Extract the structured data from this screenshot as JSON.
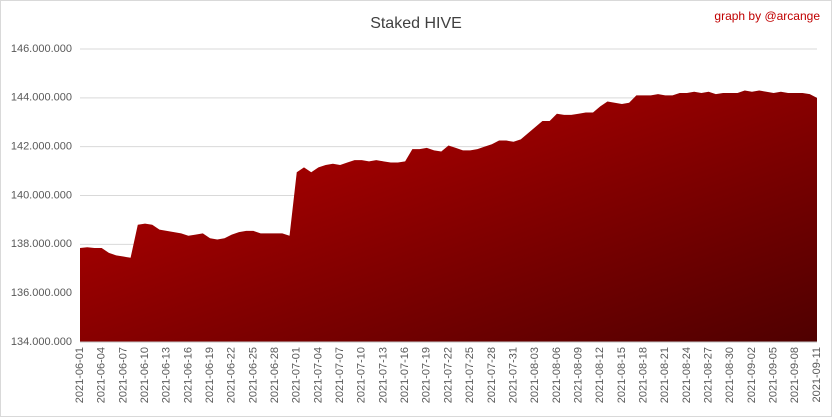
{
  "chart_data": {
    "type": "area",
    "title": "Staked HIVE",
    "annotation": "graph by @arcange",
    "categories": [
      "2021-06-01",
      null,
      null,
      "2021-06-04",
      null,
      null,
      "2021-06-07",
      null,
      null,
      "2021-06-10",
      null,
      null,
      "2021-06-13",
      null,
      null,
      "2021-06-16",
      null,
      null,
      "2021-06-19",
      null,
      null,
      "2021-06-22",
      null,
      null,
      "2021-06-25",
      null,
      null,
      "2021-06-28",
      null,
      null,
      "2021-07-01",
      null,
      null,
      "2021-07-04",
      null,
      null,
      "2021-07-07",
      null,
      null,
      "2021-07-10",
      null,
      null,
      "2021-07-13",
      null,
      null,
      "2021-07-16",
      null,
      null,
      "2021-07-19",
      null,
      null,
      "2021-07-22",
      null,
      null,
      "2021-07-25",
      null,
      null,
      "2021-07-28",
      null,
      null,
      "2021-07-31",
      null,
      null,
      "2021-08-03",
      null,
      null,
      "2021-08-06",
      null,
      null,
      "2021-08-09",
      null,
      null,
      "2021-08-12",
      null,
      null,
      "2021-08-15",
      null,
      null,
      "2021-08-18",
      null,
      null,
      "2021-08-21",
      null,
      null,
      "2021-08-24",
      null,
      null,
      "2021-08-27",
      null,
      null,
      "2021-08-30",
      null,
      null,
      "2021-09-02",
      null,
      null,
      "2021-09-05",
      null,
      null,
      "2021-09-08",
      null,
      null,
      "2021-09-11"
    ],
    "values": [
      137850000,
      137880000,
      137850000,
      137850000,
      137650000,
      137550000,
      137500000,
      137450000,
      138800000,
      138850000,
      138800000,
      138600000,
      138550000,
      138500000,
      138450000,
      138350000,
      138400000,
      138450000,
      138250000,
      138200000,
      138250000,
      138400000,
      138500000,
      138550000,
      138550000,
      138450000,
      138450000,
      138450000,
      138450000,
      138350000,
      140950000,
      141150000,
      140950000,
      141150000,
      141250000,
      141300000,
      141250000,
      141350000,
      141450000,
      141450000,
      141400000,
      141450000,
      141400000,
      141350000,
      141350000,
      141400000,
      141900000,
      141900000,
      141950000,
      141850000,
      141800000,
      142050000,
      141950000,
      141850000,
      141850000,
      141900000,
      142000000,
      142100000,
      142250000,
      142250000,
      142200000,
      142300000,
      142550000,
      142800000,
      143050000,
      143050000,
      143350000,
      143300000,
      143300000,
      143350000,
      143400000,
      143400000,
      143650000,
      143850000,
      143800000,
      143750000,
      143800000,
      144100000,
      144100000,
      144100000,
      144150000,
      144100000,
      144100000,
      144200000,
      144200000,
      144250000,
      144200000,
      144250000,
      144150000,
      144200000,
      144200000,
      144200000,
      144300000,
      144250000,
      144300000,
      144250000,
      144200000,
      144250000,
      144200000,
      144200000,
      144200000,
      144150000,
      144000000
    ],
    "color": "#b00000",
    "ylim": [
      134000000,
      146000000
    ],
    "yticks": [
      {
        "value": 134000000,
        "label": "134.000.000"
      },
      {
        "value": 136000000,
        "label": "136.000.000"
      },
      {
        "value": 138000000,
        "label": "138.000.000"
      },
      {
        "value": 140000000,
        "label": "140.000.000"
      },
      {
        "value": 142000000,
        "label": "142.000.000"
      },
      {
        "value": 144000000,
        "label": "144.000.000"
      },
      {
        "value": 146000000,
        "label": "146.000.000"
      }
    ],
    "grid": true
  }
}
